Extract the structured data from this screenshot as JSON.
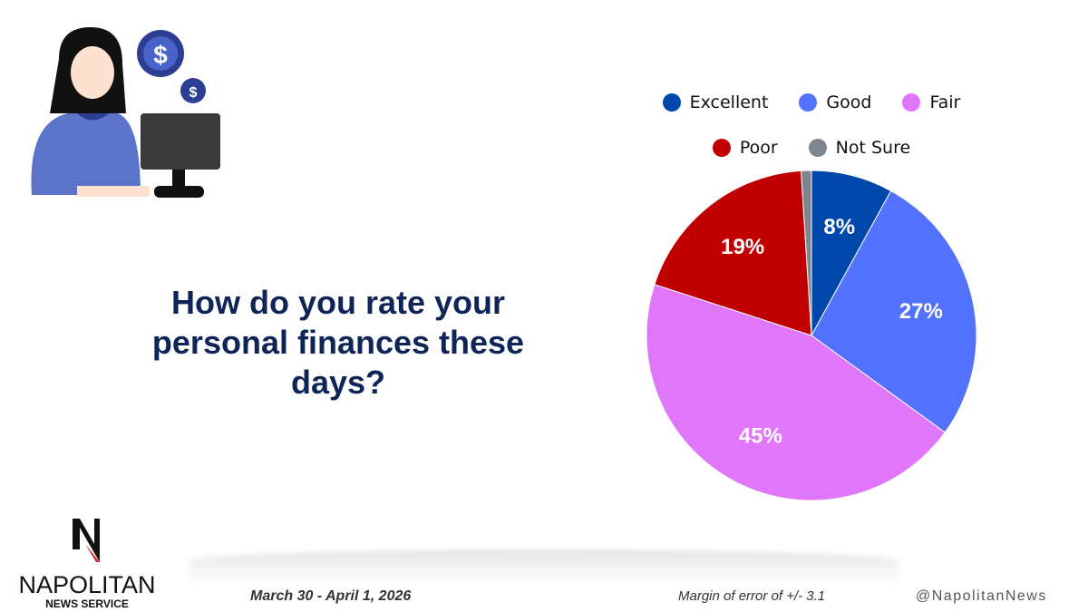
{
  "question": "How do you rate your personal finances these days?",
  "footer": {
    "date": "March 30 - April 1, 2026",
    "margin": "Margin of error of +/- 3.1",
    "handle": "@NapolitanNews"
  },
  "logo": {
    "name": "NAPOLITAN",
    "sub": "NEWS SERVICE",
    "letter": "N"
  },
  "illustration": {
    "icon": "woman-at-computer-with-dollar-coins"
  },
  "chart_data": {
    "type": "pie",
    "start": "12 o'clock, clockwise",
    "legend_position": "top",
    "slices": [
      {
        "name": "Excellent",
        "value": 8,
        "label": "8%",
        "color": "#0047ab"
      },
      {
        "name": "Good",
        "value": 27,
        "label": "27%",
        "color": "#5271ff"
      },
      {
        "name": "Fair",
        "value": 45,
        "label": "45%",
        "color": "#e076fa"
      },
      {
        "name": "Poor",
        "value": 19,
        "label": "19%",
        "color": "#c00000"
      },
      {
        "name": "Not Sure",
        "value": 1,
        "label": "",
        "color": "#7f868f"
      }
    ]
  }
}
